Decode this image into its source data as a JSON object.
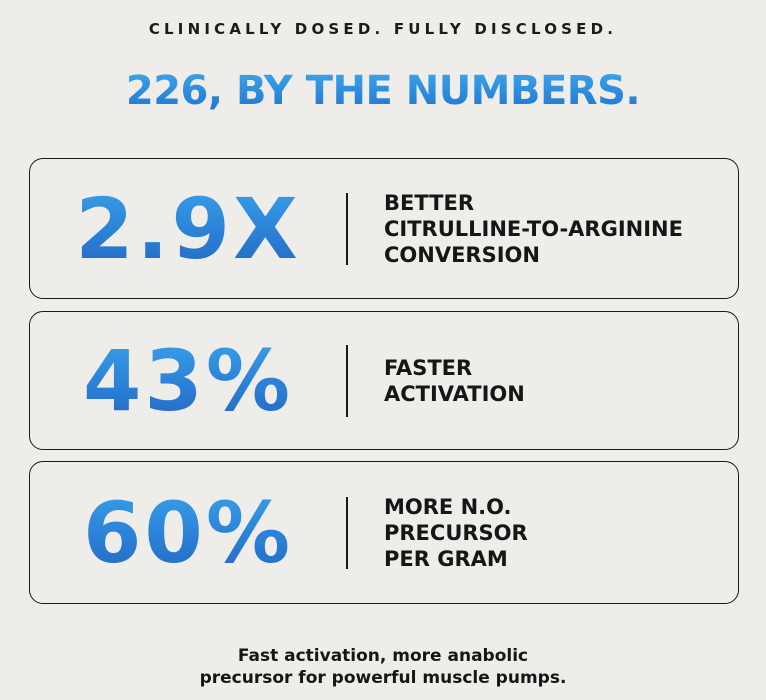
{
  "eyebrow": "CLINICALLY DOSED. FULLY DISCLOSED.",
  "headline": "226, BY THE NUMBERS.",
  "colors": {
    "headline_gradient": [
      "#3ea8ea",
      "#1f72cf"
    ],
    "stat_gradient": [
      "#3fb2f1",
      "#2a7fd6",
      "#2458b4"
    ],
    "background": "#efedea",
    "text": "#161616"
  },
  "stats": [
    {
      "value": "2.9X",
      "lines": [
        "BETTER",
        "CITRULLINE-TO-ARGININE",
        "CONVERSION"
      ]
    },
    {
      "value": "43%",
      "lines": [
        "FASTER",
        "ACTIVATION"
      ]
    },
    {
      "value": "60%",
      "lines": [
        "MORE N.O.",
        "PRECURSOR",
        "PER GRAM"
      ]
    }
  ],
  "footer": {
    "line1": "Fast activation, more anabolic",
    "line2": "precursor for powerful muscle pumps."
  }
}
